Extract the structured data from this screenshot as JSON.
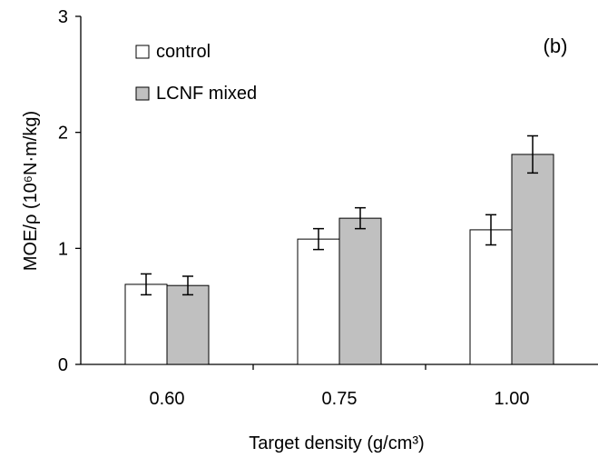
{
  "chart_data": {
    "type": "bar",
    "panel_label": "(b)",
    "categories": [
      "0.60",
      "0.75",
      "1.00"
    ],
    "series": [
      {
        "name": "control",
        "values": [
          0.69,
          1.08,
          1.16
        ],
        "errors": [
          0.09,
          0.09,
          0.13
        ],
        "color": "#ffffff"
      },
      {
        "name": "LCNF mixed",
        "values": [
          0.68,
          1.26,
          1.81
        ],
        "errors": [
          0.08,
          0.09,
          0.16
        ],
        "color": "#c0c0c0"
      }
    ],
    "xlabel": "Target density (g/cm³)",
    "ylabel": "MOE/ρ (10⁶N·m/kg)",
    "ylim": [
      0,
      3
    ],
    "yticks": [
      "0",
      "1",
      "2",
      "3"
    ],
    "grid": false,
    "legend_position": "top-left"
  }
}
